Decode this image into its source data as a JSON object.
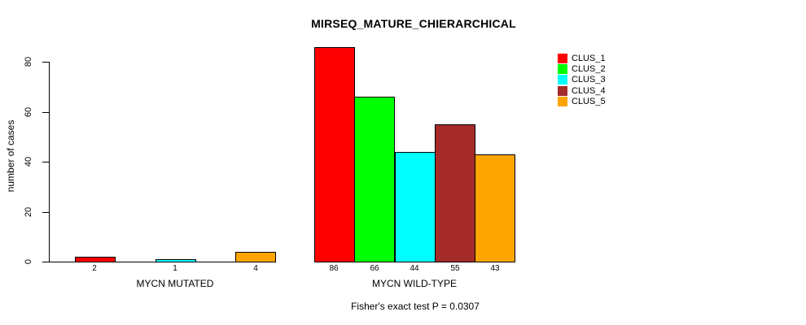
{
  "chart_data": {
    "type": "bar",
    "title": "MIRSEQ_MATURE_CHIERARCHICAL",
    "ylabel": "number of cases",
    "xlabel": "",
    "ylim": [
      0,
      86
    ],
    "yticks": [
      0,
      20,
      40,
      60,
      80
    ],
    "grid": false,
    "bar_border_color": "#000000",
    "background_color": "#ffffff",
    "text_color": "#000000",
    "annotation": "Fisher's exact test P = 0.0307",
    "legend": {
      "position": "top-right",
      "entries": [
        {
          "label": "CLUS_1",
          "color": "#FF0000"
        },
        {
          "label": "CLUS_2",
          "color": "#00FF00"
        },
        {
          "label": "CLUS_3",
          "color": "#00FFFF"
        },
        {
          "label": "CLUS_4",
          "color": "#A52A2A"
        },
        {
          "label": "CLUS_5",
          "color": "#FFA500"
        }
      ]
    },
    "groups": [
      {
        "label": "MYCN MUTATED",
        "slots": 5,
        "bars": [
          {
            "slot": 0,
            "cluster": "CLUS_1",
            "value": 2,
            "color": "#FF0000"
          },
          {
            "slot": 2,
            "cluster": "CLUS_3",
            "value": 1,
            "color": "#00FFFF"
          },
          {
            "slot": 4,
            "cluster": "CLUS_5",
            "value": 4,
            "color": "#FFA500"
          }
        ]
      },
      {
        "label": "MYCN WILD-TYPE",
        "slots": 5,
        "bars": [
          {
            "slot": 0,
            "cluster": "CLUS_1",
            "value": 86,
            "color": "#FF0000"
          },
          {
            "slot": 1,
            "cluster": "CLUS_2",
            "value": 66,
            "color": "#00FF00"
          },
          {
            "slot": 2,
            "cluster": "CLUS_3",
            "value": 44,
            "color": "#00FFFF"
          },
          {
            "slot": 3,
            "cluster": "CLUS_4",
            "value": 55,
            "color": "#A52A2A"
          },
          {
            "slot": 4,
            "cluster": "CLUS_5",
            "value": 43,
            "color": "#FFA500"
          }
        ]
      }
    ]
  }
}
